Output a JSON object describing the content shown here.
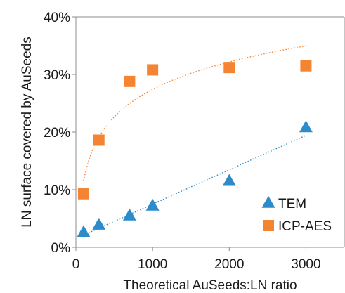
{
  "chart_data": {
    "type": "scatter",
    "title": "",
    "xlabel": "Theoretical AuSeeds:LN ratio",
    "ylabel": "LN surface covered by AuSeeds",
    "xlim": [
      0,
      3500
    ],
    "ylim": [
      0,
      40
    ],
    "xticks": [
      0,
      1000,
      2000,
      3000
    ],
    "yticks": [
      0,
      10,
      20,
      30,
      40
    ],
    "y_unit": "%",
    "grid": false,
    "legend_position": "bottom-right",
    "series": [
      {
        "name": "TEM",
        "marker": "triangle",
        "color": "#2E8BC9",
        "x": [
          100,
          300,
          700,
          1000,
          2000,
          3000
        ],
        "y": [
          2.6,
          3.9,
          5.5,
          7.2,
          11.5,
          20.8
        ],
        "trendline": {
          "type": "linear",
          "color": "#2E8BC9",
          "style": "dotted"
        }
      },
      {
        "name": "ICP-AES",
        "marker": "square",
        "color": "#F58432",
        "x": [
          100,
          300,
          700,
          1000,
          2000,
          3000
        ],
        "y": [
          9.3,
          18.6,
          28.8,
          30.8,
          31.2,
          31.5
        ],
        "trendline": {
          "type": "logarithmic",
          "color": "#F58432",
          "style": "dotted"
        }
      }
    ]
  }
}
